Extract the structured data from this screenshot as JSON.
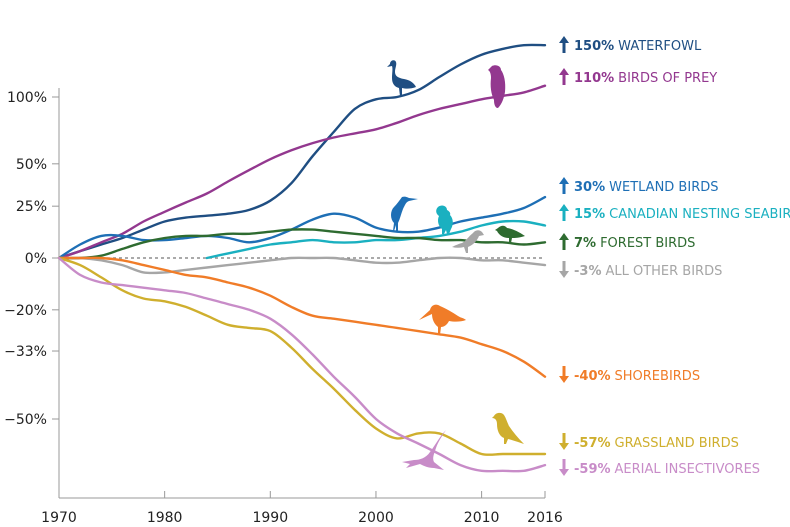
{
  "chart_data": {
    "type": "line",
    "title": "",
    "xlabel": "",
    "ylabel": "",
    "yscale": "log-index",
    "xlim": [
      1970,
      2016
    ],
    "ylim": [
      -62,
      160
    ],
    "grid": false,
    "baseline": {
      "value": 0,
      "style": "dashed",
      "color": "#777777"
    },
    "x_ticks": [
      1970,
      1980,
      1990,
      2000,
      2010,
      2016
    ],
    "x_tick_labels": [
      "1970",
      "1980",
      "1990",
      "2000",
      "2010",
      "2016"
    ],
    "y_ticks": [
      100,
      50,
      25,
      0,
      -20,
      -33,
      -50
    ],
    "y_tick_labels": [
      "100%",
      "50%",
      "25%",
      "0%",
      "−20%",
      "−33%",
      "−50%"
    ],
    "legend_placement": "right (end-of-line labels)",
    "series": [
      {
        "name": "WATERFOWL",
        "pct_label": "150%",
        "direction": "up",
        "color": "#1f4e82",
        "icon": "goose-silhouette",
        "x": [
          1970,
          1972,
          1974,
          1976,
          1978,
          1980,
          1982,
          1984,
          1986,
          1988,
          1990,
          1992,
          1994,
          1996,
          1998,
          2000,
          2002,
          2004,
          2006,
          2008,
          2010,
          2012,
          2014,
          2016
        ],
        "values": [
          0,
          3,
          6,
          9,
          13,
          17,
          19,
          20,
          21,
          23,
          28,
          38,
          55,
          72,
          90,
          98,
          100,
          106,
          118,
          130,
          140,
          146,
          150,
          150
        ]
      },
      {
        "name": "BIRDS OF PREY",
        "pct_label": "110%",
        "direction": "up",
        "color": "#93388f",
        "icon": "hawk-silhouette",
        "x": [
          1970,
          1972,
          1974,
          1976,
          1978,
          1980,
          1982,
          1984,
          1986,
          1988,
          1990,
          1992,
          1994,
          1996,
          1998,
          2000,
          2002,
          2004,
          2006,
          2008,
          2010,
          2012,
          2014,
          2016
        ],
        "values": [
          0,
          3,
          7,
          11,
          17,
          22,
          27,
          32,
          39,
          46,
          53,
          59,
          64,
          68,
          71,
          74,
          79,
          85,
          90,
          94,
          98,
          101,
          104,
          110
        ]
      },
      {
        "name": "WETLAND BIRDS",
        "pct_label": "30%",
        "direction": "up",
        "color": "#1e6fb5",
        "icon": "heron-silhouette",
        "x": [
          1970,
          1972,
          1974,
          1976,
          1978,
          1980,
          1982,
          1984,
          1986,
          1988,
          1990,
          1992,
          1994,
          1996,
          1998,
          2000,
          2002,
          2004,
          2006,
          2008,
          2010,
          2012,
          2014,
          2016
        ],
        "values": [
          0,
          6,
          10,
          10,
          8,
          8,
          9,
          10,
          9,
          7,
          9,
          13,
          18,
          21,
          19,
          14,
          12,
          12,
          14,
          17,
          19,
          21,
          24,
          30
        ]
      },
      {
        "name": "CANADIAN NESTING SEABIRDS",
        "pct_label": "15%",
        "direction": "up",
        "color": "#1ab0c0",
        "icon": "puffin-silhouette",
        "x": [
          1984,
          1986,
          1988,
          1990,
          1992,
          1994,
          1996,
          1998,
          2000,
          2002,
          2004,
          2006,
          2008,
          2010,
          2012,
          2014,
          2016
        ],
        "values": [
          0,
          2,
          4,
          6,
          7,
          8,
          7,
          7,
          8,
          8,
          9,
          10,
          12,
          15,
          17,
          17,
          15
        ]
      },
      {
        "name": "FOREST BIRDS",
        "pct_label": "7%",
        "direction": "up",
        "color": "#2e6b30",
        "icon": "songbird-silhouette",
        "x": [
          1970,
          1972,
          1974,
          1976,
          1978,
          1980,
          1982,
          1984,
          1986,
          1988,
          1990,
          1992,
          1994,
          1996,
          1998,
          2000,
          2002,
          2004,
          2006,
          2008,
          2010,
          2012,
          2014,
          2016
        ],
        "values": [
          0,
          0,
          1,
          4,
          7,
          9,
          10,
          10,
          11,
          11,
          12,
          13,
          13,
          12,
          11,
          10,
          9,
          9,
          8,
          8,
          7,
          7,
          6,
          7
        ]
      },
      {
        "name": "ALL OTHER BIRDS",
        "pct_label": "-3%",
        "direction": "down",
        "color": "#a6a6a6",
        "icon": "crow-silhouette",
        "x": [
          1970,
          1972,
          1974,
          1976,
          1978,
          1980,
          1982,
          1984,
          1986,
          1988,
          1990,
          1992,
          1994,
          1996,
          1998,
          2000,
          2002,
          2004,
          2006,
          2008,
          2010,
          2012,
          2014,
          2016
        ],
        "values": [
          0,
          0,
          -1,
          -3,
          -6,
          -6,
          -5,
          -4,
          -3,
          -2,
          -1,
          0,
          0,
          0,
          -1,
          -2,
          -2,
          -1,
          0,
          0,
          -1,
          -1,
          -2,
          -3
        ]
      },
      {
        "name": "SHOREBIRDS",
        "pct_label": "-40%",
        "direction": "down",
        "color": "#f07c28",
        "icon": "sandpiper-silhouette",
        "x": [
          1970,
          1972,
          1974,
          1976,
          1978,
          1980,
          1982,
          1984,
          1986,
          1988,
          1990,
          1992,
          1994,
          1996,
          1998,
          2000,
          2002,
          2004,
          2006,
          2008,
          2010,
          2012,
          2014,
          2016
        ],
        "values": [
          0,
          0,
          0,
          -1,
          -3,
          -5,
          -7,
          -8,
          -10,
          -12,
          -15,
          -19,
          -22,
          -23,
          -24,
          -25,
          -26,
          -27,
          -28,
          -29,
          -31,
          -33,
          -36,
          -40
        ]
      },
      {
        "name": "GRASSLAND BIRDS",
        "pct_label": "-57%",
        "direction": "down",
        "color": "#cfaf2e",
        "icon": "meadowlark-silhouette",
        "x": [
          1970,
          1972,
          1974,
          1976,
          1978,
          1980,
          1982,
          1984,
          1986,
          1988,
          1990,
          1992,
          1994,
          1996,
          1998,
          2000,
          2002,
          2004,
          2006,
          2008,
          2010,
          2012,
          2014,
          2016
        ],
        "values": [
          0,
          -3,
          -8,
          -13,
          -16,
          -17,
          -19,
          -22,
          -25,
          -26,
          -27,
          -32,
          -38,
          -43,
          -48,
          -52,
          -54,
          -53,
          -53,
          -55,
          -57,
          -57,
          -57,
          -57
        ]
      },
      {
        "name": "AERIAL INSECTIVORES",
        "pct_label": "-59%",
        "direction": "down",
        "color": "#c88cc8",
        "icon": "swallow-silhouette",
        "x": [
          1970,
          1972,
          1974,
          1976,
          1978,
          1980,
          1982,
          1984,
          1986,
          1988,
          1990,
          1992,
          1994,
          1996,
          1998,
          2000,
          2002,
          2004,
          2006,
          2008,
          2010,
          2012,
          2014,
          2016
        ],
        "values": [
          0,
          -7,
          -10,
          -11,
          -12,
          -13,
          -14,
          -16,
          -18,
          -20,
          -23,
          -28,
          -34,
          -40,
          -45,
          -50,
          -53,
          -55,
          -57,
          -59,
          -60,
          -60,
          -60,
          -59
        ]
      }
    ]
  }
}
